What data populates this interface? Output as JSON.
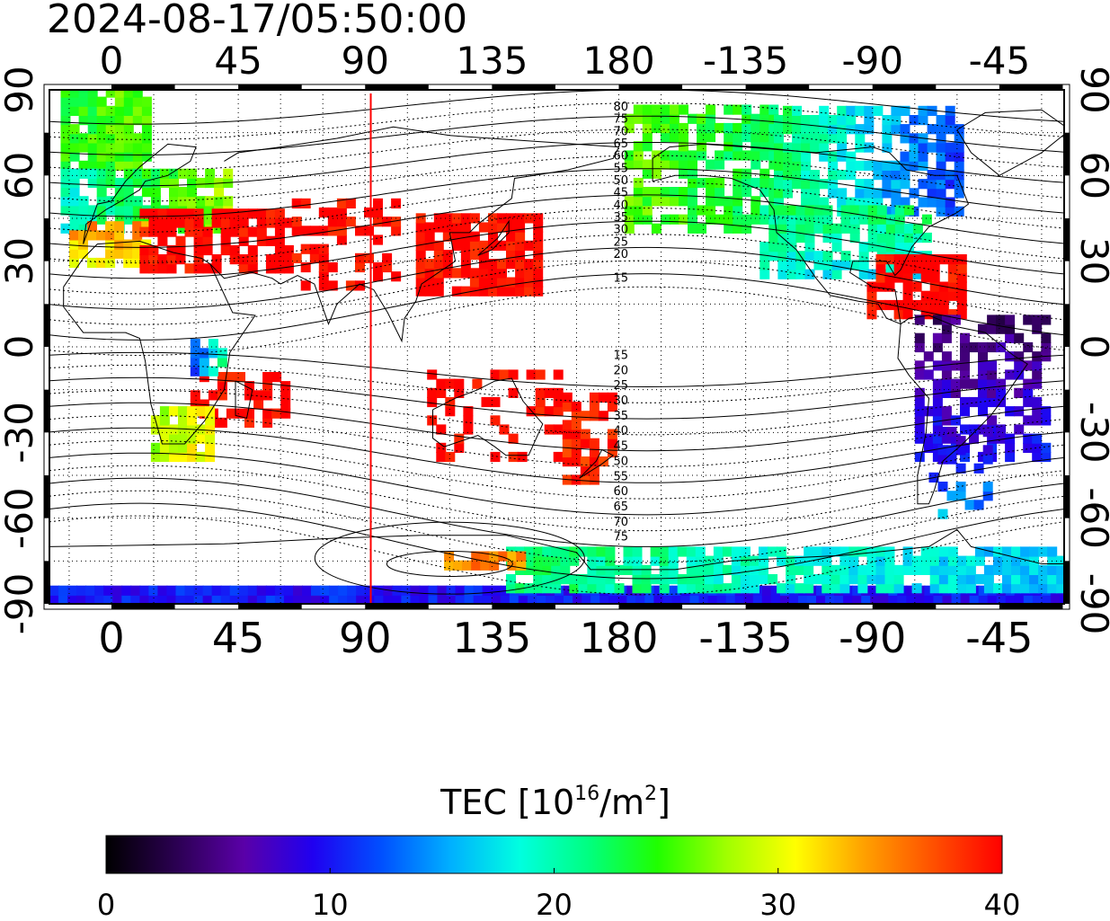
{
  "timestamp": "2024-08-17/05:50:00",
  "map": {
    "projection": "equirectangular",
    "lon_center": 180,
    "lon_range": [
      -22,
      338
    ],
    "lat_range": [
      -90,
      90
    ],
    "lon_tick_values": [
      0,
      45,
      90,
      135,
      180,
      225,
      270,
      315
    ],
    "lon_tick_labels": [
      "0",
      "45",
      "90",
      "135",
      "180",
      "-135",
      "-90",
      "-45"
    ],
    "lat_tick_values": [
      90,
      60,
      30,
      0,
      -30,
      -60,
      -90
    ],
    "lat_tick_labels": [
      "90",
      "60",
      "30",
      "0",
      "-30",
      "-60",
      "-90"
    ],
    "grid": "dotted every 15 degrees",
    "terminator_longitude": 92,
    "terminator_color": "#ff0000"
  },
  "contours": {
    "labels_north": [
      "80",
      "75",
      "70",
      "65",
      "60",
      "55",
      "50",
      "45",
      "40",
      "35",
      "30",
      "25",
      "20",
      "15"
    ],
    "labels_south": [
      "15",
      "20",
      "25",
      "30",
      "35",
      "40",
      "45",
      "50",
      "55",
      "60",
      "65",
      "70",
      "75"
    ]
  },
  "colorbar": {
    "title_prefix": "TEC  [10",
    "title_sup1": "16",
    "title_mid": "/m",
    "title_sup2": "2",
    "title_suffix": "]",
    "min": 0,
    "max": 40,
    "tick_labels": [
      "0",
      "10",
      "20",
      "30",
      "40"
    ],
    "colors": [
      "#000000",
      "#2a0050",
      "#5a00a8",
      "#2000f0",
      "#0050ff",
      "#00b0ff",
      "#00ffe0",
      "#00ff80",
      "#20ff00",
      "#a0ff00",
      "#ffff00",
      "#ffa000",
      "#ff5000",
      "#ff0000"
    ]
  }
}
